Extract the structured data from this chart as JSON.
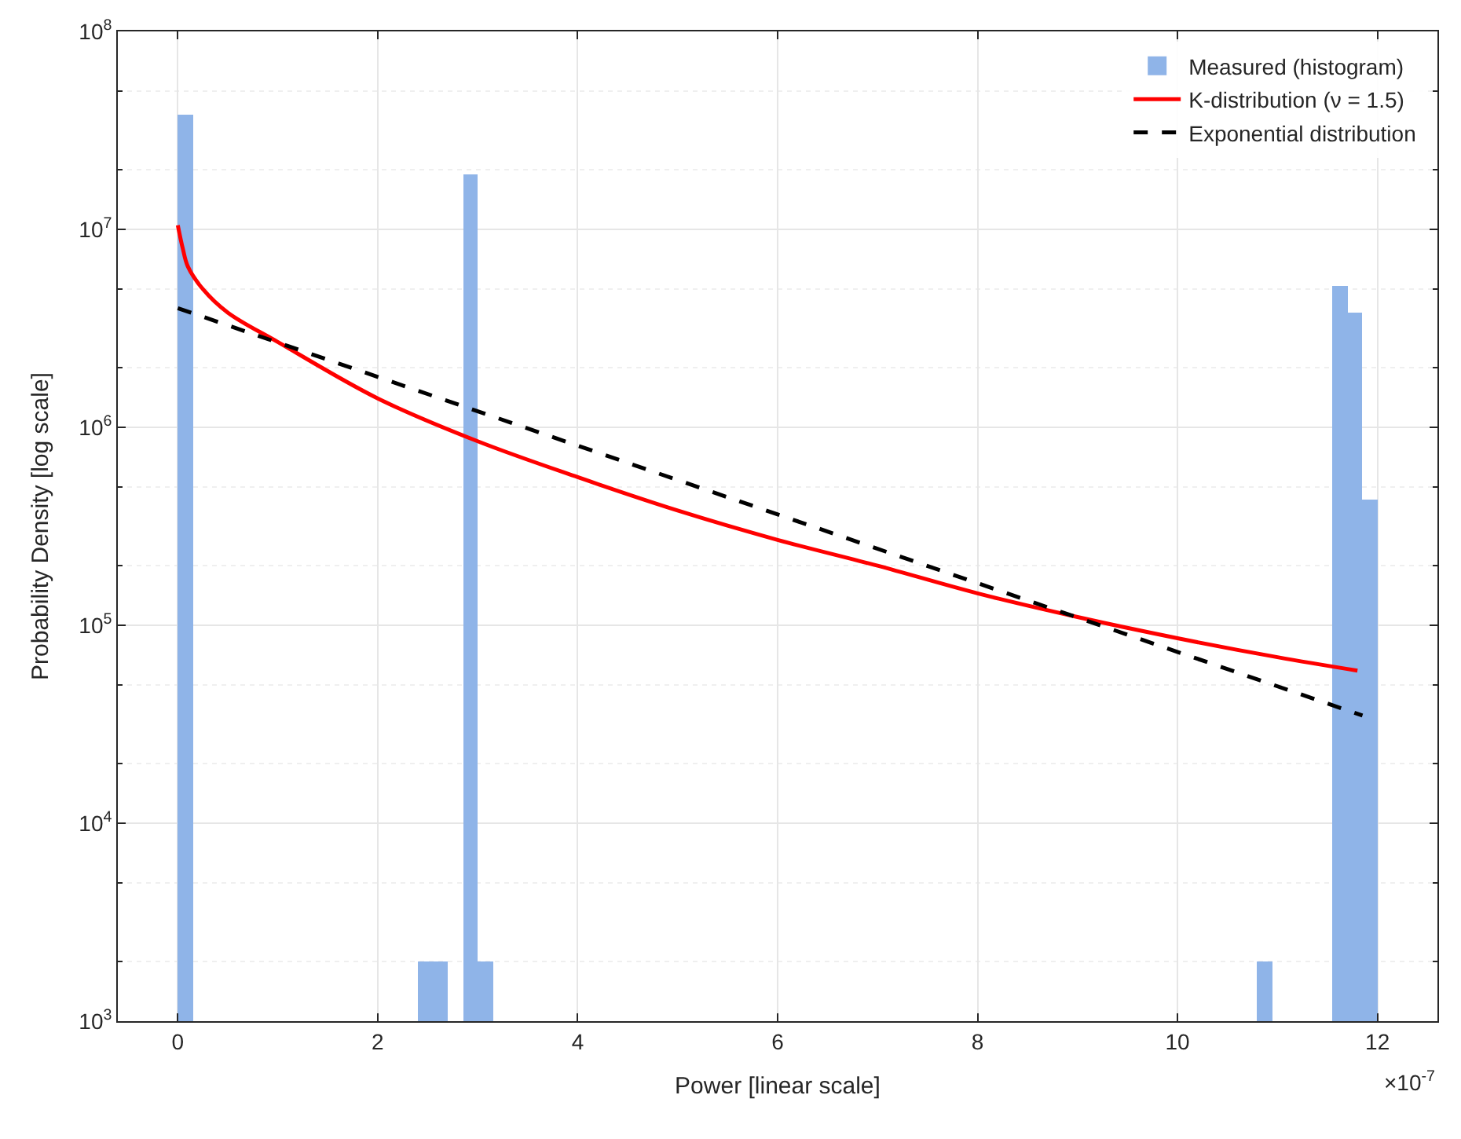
{
  "chart_data": {
    "type": "histogram",
    "xlabel": "Power [linear scale]",
    "ylabel": "Probability Density [log scale]",
    "bins": [
      0,
      0.15,
      0.3,
      0.45,
      0.6,
      0.75,
      0.9,
      1.05,
      1.2,
      1.35,
      1.5,
      1.65,
      1.8,
      1.95,
      2.1,
      2.25,
      2.4,
      2.55,
      2.7,
      2.85,
      3.0,
      3.15,
      3.3,
      3.45,
      3.6,
      3.75,
      3.9,
      4.05,
      4.2,
      4.35,
      4.5,
      4.65,
      4.8,
      4.95,
      5.1,
      5.25,
      5.4,
      5.55,
      5.7,
      5.85,
      6.0,
      6.15,
      6.3,
      6.45,
      6.6,
      6.75,
      6.9,
      7.05,
      7.2,
      7.35,
      7.5,
      7.65,
      7.8,
      7.95,
      8.1,
      8.25,
      8.4,
      8.55,
      8.7,
      8.85,
      9.0,
      9.15,
      9.3,
      9.45,
      9.6,
      9.75,
      9.9,
      10.05,
      10.2,
      10.35,
      10.5,
      10.65,
      10.8,
      10.95,
      11.1,
      11.25,
      11.4,
      11.55,
      11.7,
      11.85,
      12.0
    ],
    "series": [
      {
        "name": "Measured (histogram)",
        "color": "#8fb4e8",
        "values": [
          38000000,
          null,
          null,
          null,
          null,
          null,
          null,
          null,
          null,
          null,
          null,
          null,
          null,
          null,
          null,
          null,
          2000,
          2000,
          null,
          19000000,
          2000,
          null,
          null,
          null,
          null,
          null,
          null,
          null,
          null,
          null,
          null,
          null,
          null,
          null,
          null,
          null,
          null,
          null,
          null,
          null,
          null,
          null,
          null,
          null,
          null,
          null,
          null,
          null,
          null,
          null,
          null,
          null,
          null,
          null,
          null,
          null,
          null,
          null,
          null,
          null,
          null,
          null,
          null,
          null,
          null,
          null,
          null,
          null,
          null,
          null,
          null,
          null,
          2000,
          null,
          null,
          null,
          null,
          5200000,
          3800000,
          430000
        ]
      },
      {
        "name": "K-distribution (ν = 1.5)",
        "type": "line",
        "color": "#ff0000",
        "line_style": "solid",
        "x": [
          0,
          0.05,
          0.1,
          0.25,
          0.5,
          1,
          2,
          3,
          4,
          5,
          6,
          7,
          8,
          9,
          10,
          11,
          11.8
        ],
        "values": [
          10500000,
          8000000,
          6500000,
          5000000,
          3800000,
          2700000,
          1400000,
          850000,
          560000,
          380000,
          270000,
          200000,
          145000,
          110000,
          86000,
          69000,
          59000
        ]
      },
      {
        "name": "Exponential distribution",
        "type": "line",
        "color": "#000000",
        "line_style": "dashed",
        "x": [
          0,
          11.85
        ],
        "values": [
          4000000,
          35000
        ]
      }
    ],
    "xlim": [
      -0.6,
      12.6
    ],
    "xticks": [
      0,
      2,
      4,
      6,
      8,
      10,
      12
    ],
    "ylim": [
      1000,
      100000000
    ],
    "yticks": [
      {
        "value": 1000,
        "label": "10$^{3}$"
      },
      {
        "value": 10000,
        "label": "10$^{4}$"
      },
      {
        "value": 100000,
        "label": "10$^{5}$"
      },
      {
        "value": 1000000,
        "label": "10$^{6}$"
      },
      {
        "value": 10000000,
        "label": "10$^{7}$"
      },
      {
        "value": 100000000,
        "label": "10$^{8}$"
      }
    ],
    "log": "y",
    "grid": true,
    "legend": "top right",
    "annotations": [
      "×10$^{-7}$"
    ]
  }
}
